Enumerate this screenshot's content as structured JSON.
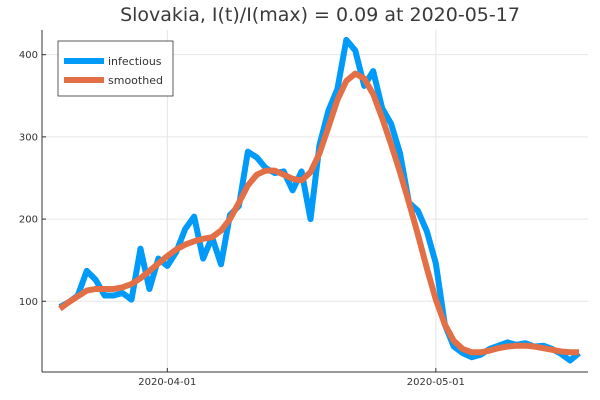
{
  "chart_data": {
    "type": "line",
    "title": "Slovakia,  I(t)/I(max) = 0.09 at 2020-05-17",
    "xlabel": "",
    "ylabel": "",
    "x_dates": [
      "2020-03-20",
      "2020-03-21",
      "2020-03-22",
      "2020-03-23",
      "2020-03-24",
      "2020-03-25",
      "2020-03-26",
      "2020-03-27",
      "2020-03-28",
      "2020-03-29",
      "2020-03-30",
      "2020-03-31",
      "2020-04-01",
      "2020-04-02",
      "2020-04-03",
      "2020-04-04",
      "2020-04-05",
      "2020-04-06",
      "2020-04-07",
      "2020-04-08",
      "2020-04-09",
      "2020-04-10",
      "2020-04-11",
      "2020-04-12",
      "2020-04-13",
      "2020-04-14",
      "2020-04-15",
      "2020-04-16",
      "2020-04-17",
      "2020-04-18",
      "2020-04-19",
      "2020-04-20",
      "2020-04-21",
      "2020-04-22",
      "2020-04-23",
      "2020-04-24",
      "2020-04-25",
      "2020-04-26",
      "2020-04-27",
      "2020-04-28",
      "2020-04-29",
      "2020-04-30",
      "2020-05-01",
      "2020-05-02",
      "2020-05-03",
      "2020-05-04",
      "2020-05-05",
      "2020-05-06",
      "2020-05-07",
      "2020-05-08",
      "2020-05-09",
      "2020-05-10",
      "2020-05-11",
      "2020-05-12",
      "2020-05-13",
      "2020-05-14",
      "2020-05-15",
      "2020-05-16",
      "2020-05-17"
    ],
    "x_ticks": [
      "2020-04-01",
      "2020-05-01"
    ],
    "y_ticks": [
      100,
      200,
      300,
      400
    ],
    "xlim": [
      "2020-03-18",
      "2020-05-18"
    ],
    "ylim": [
      14,
      430
    ],
    "grid": true,
    "legend_position": "top-left",
    "series": [
      {
        "name": "infectious",
        "color": "#009af9",
        "values": [
          93,
          99,
          107,
          137,
          126,
          107,
          107,
          110,
          102,
          164,
          115,
          152,
          143,
          160,
          188,
          203,
          152,
          178,
          145,
          205,
          216,
          282,
          275,
          262,
          256,
          258,
          235,
          258,
          200,
          290,
          332,
          358,
          418,
          405,
          362,
          380,
          335,
          316,
          280,
          220,
          210,
          185,
          146,
          72,
          45,
          37,
          32,
          35,
          42,
          46,
          50,
          47,
          49,
          45,
          46,
          42,
          36,
          28,
          37
        ]
      },
      {
        "name": "smoothed",
        "color": "#e26f46",
        "values": [
          91,
          99,
          106,
          113,
          115,
          115,
          115,
          117,
          121,
          128,
          137,
          146,
          155,
          163,
          169,
          173,
          176,
          178,
          186,
          200,
          220,
          241,
          254,
          259,
          259,
          254,
          249,
          247,
          257,
          280,
          312,
          345,
          368,
          377,
          371,
          352,
          323,
          291,
          257,
          220,
          181,
          140,
          102,
          72,
          52,
          42,
          38,
          38,
          40,
          43,
          45,
          46,
          46,
          45,
          43,
          41,
          39,
          38,
          38
        ]
      }
    ]
  }
}
